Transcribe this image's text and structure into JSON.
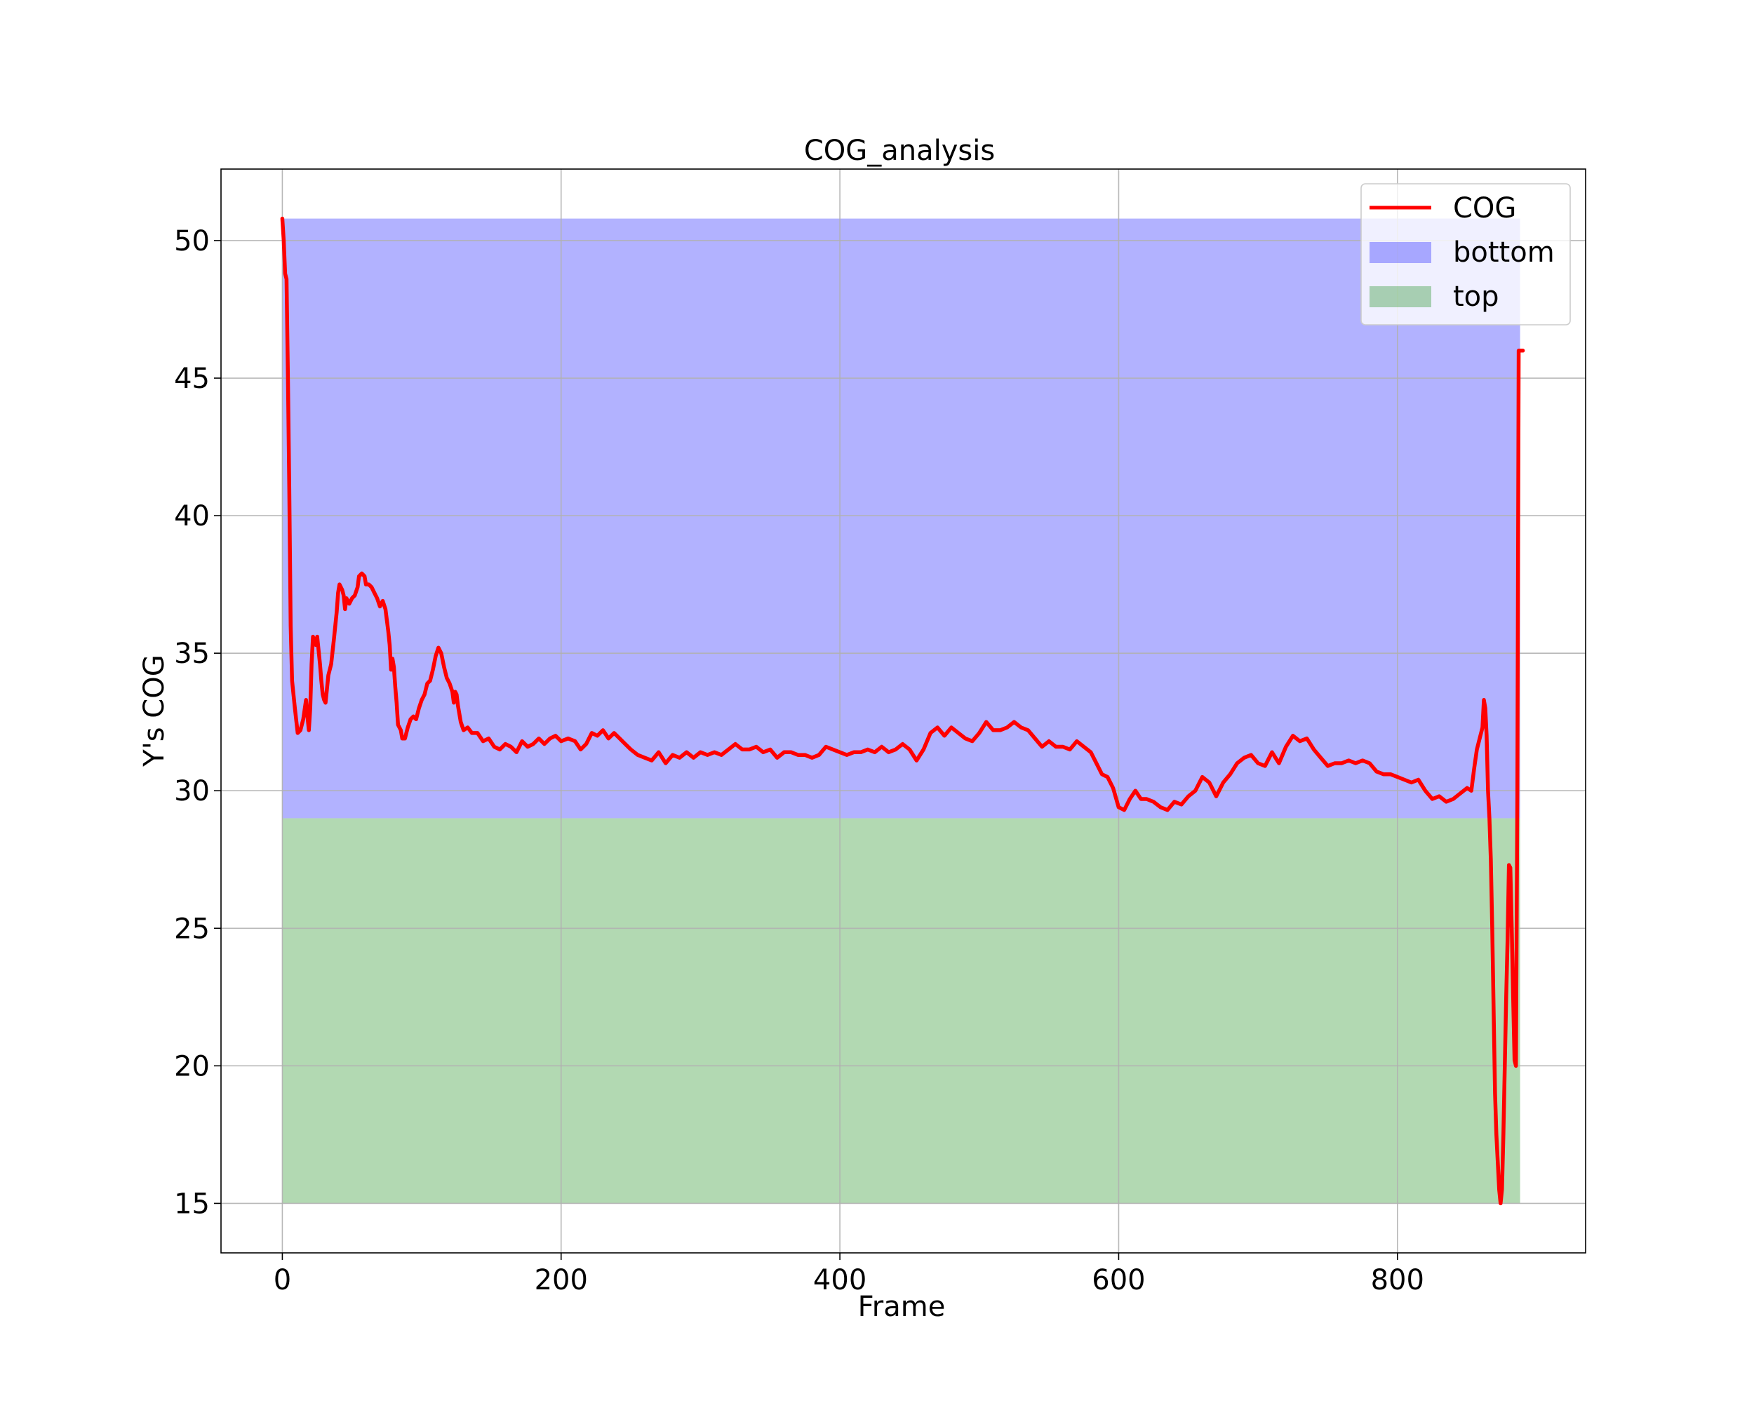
{
  "chart_data": {
    "type": "line",
    "title": "COG_analysis",
    "xlabel": "Frame",
    "ylabel": "Y's COG",
    "xlim": [
      -44,
      935
    ],
    "ylim": [
      13.2,
      52.6
    ],
    "xticks": [
      0,
      200,
      400,
      600,
      800
    ],
    "yticks": [
      15,
      20,
      25,
      30,
      35,
      40,
      45,
      50
    ],
    "grid": true,
    "legend_position": "upper right",
    "series": [
      {
        "name": "COG",
        "kind": "line",
        "color": "#ff0000",
        "points": [
          [
            0,
            50.8
          ],
          [
            1,
            50.0
          ],
          [
            2,
            48.8
          ],
          [
            3,
            48.6
          ],
          [
            4,
            45.0
          ],
          [
            5,
            41.0
          ],
          [
            6,
            36.0
          ],
          [
            7,
            34.0
          ],
          [
            9,
            33.0
          ],
          [
            11,
            32.1
          ],
          [
            13,
            32.2
          ],
          [
            15,
            32.6
          ],
          [
            17,
            33.3
          ],
          [
            18,
            32.7
          ],
          [
            19,
            32.2
          ],
          [
            20,
            33.0
          ],
          [
            21,
            34.6
          ],
          [
            22,
            35.6
          ],
          [
            24,
            35.3
          ],
          [
            25,
            35.6
          ],
          [
            27,
            34.6
          ],
          [
            28,
            34.0
          ],
          [
            29,
            33.5
          ],
          [
            30,
            33.3
          ],
          [
            31,
            33.2
          ],
          [
            33,
            34.2
          ],
          [
            35,
            34.6
          ],
          [
            37,
            35.5
          ],
          [
            39,
            36.5
          ],
          [
            40,
            37.2
          ],
          [
            41,
            37.5
          ],
          [
            43,
            37.3
          ],
          [
            44,
            37.1
          ],
          [
            45,
            36.6
          ],
          [
            46,
            37.0
          ],
          [
            48,
            36.8
          ],
          [
            50,
            37.0
          ],
          [
            52,
            37.1
          ],
          [
            54,
            37.4
          ],
          [
            55,
            37.8
          ],
          [
            57,
            37.9
          ],
          [
            59,
            37.8
          ],
          [
            60,
            37.5
          ],
          [
            62,
            37.5
          ],
          [
            64,
            37.4
          ],
          [
            66,
            37.2
          ],
          [
            68,
            37.0
          ],
          [
            70,
            36.7
          ],
          [
            72,
            36.9
          ],
          [
            74,
            36.6
          ],
          [
            76,
            35.8
          ],
          [
            77,
            35.3
          ],
          [
            78,
            34.4
          ],
          [
            79,
            34.8
          ],
          [
            80,
            34.5
          ],
          [
            81,
            33.8
          ],
          [
            82,
            33.2
          ],
          [
            83,
            32.4
          ],
          [
            85,
            32.2
          ],
          [
            86,
            31.9
          ],
          [
            88,
            31.9
          ],
          [
            90,
            32.3
          ],
          [
            92,
            32.6
          ],
          [
            94,
            32.7
          ],
          [
            96,
            32.6
          ],
          [
            98,
            33.0
          ],
          [
            100,
            33.3
          ],
          [
            102,
            33.5
          ],
          [
            104,
            33.9
          ],
          [
            106,
            34.0
          ],
          [
            108,
            34.4
          ],
          [
            110,
            34.9
          ],
          [
            112,
            35.2
          ],
          [
            114,
            35.0
          ],
          [
            116,
            34.5
          ],
          [
            118,
            34.1
          ],
          [
            120,
            33.9
          ],
          [
            122,
            33.6
          ],
          [
            123,
            33.2
          ],
          [
            124,
            33.6
          ],
          [
            125,
            33.5
          ],
          [
            126,
            33.1
          ],
          [
            127,
            32.8
          ],
          [
            128,
            32.5
          ],
          [
            130,
            32.2
          ],
          [
            133,
            32.3
          ],
          [
            136,
            32.1
          ],
          [
            140,
            32.1
          ],
          [
            144,
            31.8
          ],
          [
            148,
            31.9
          ],
          [
            152,
            31.6
          ],
          [
            156,
            31.5
          ],
          [
            160,
            31.7
          ],
          [
            164,
            31.6
          ],
          [
            168,
            31.4
          ],
          [
            172,
            31.8
          ],
          [
            176,
            31.6
          ],
          [
            180,
            31.7
          ],
          [
            184,
            31.9
          ],
          [
            188,
            31.7
          ],
          [
            192,
            31.9
          ],
          [
            196,
            32.0
          ],
          [
            200,
            31.8
          ],
          [
            205,
            31.9
          ],
          [
            210,
            31.8
          ],
          [
            214,
            31.5
          ],
          [
            218,
            31.7
          ],
          [
            222,
            32.1
          ],
          [
            226,
            32.0
          ],
          [
            230,
            32.2
          ],
          [
            234,
            31.9
          ],
          [
            238,
            32.1
          ],
          [
            242,
            31.9
          ],
          [
            246,
            31.7
          ],
          [
            250,
            31.5
          ],
          [
            255,
            31.3
          ],
          [
            260,
            31.2
          ],
          [
            265,
            31.1
          ],
          [
            270,
            31.4
          ],
          [
            275,
            31.0
          ],
          [
            280,
            31.3
          ],
          [
            285,
            31.2
          ],
          [
            290,
            31.4
          ],
          [
            295,
            31.2
          ],
          [
            300,
            31.4
          ],
          [
            305,
            31.3
          ],
          [
            310,
            31.4
          ],
          [
            315,
            31.3
          ],
          [
            320,
            31.5
          ],
          [
            325,
            31.7
          ],
          [
            330,
            31.5
          ],
          [
            335,
            31.5
          ],
          [
            340,
            31.6
          ],
          [
            345,
            31.4
          ],
          [
            350,
            31.5
          ],
          [
            355,
            31.2
          ],
          [
            360,
            31.4
          ],
          [
            365,
            31.4
          ],
          [
            370,
            31.3
          ],
          [
            375,
            31.3
          ],
          [
            380,
            31.2
          ],
          [
            385,
            31.3
          ],
          [
            390,
            31.6
          ],
          [
            395,
            31.5
          ],
          [
            400,
            31.4
          ],
          [
            405,
            31.3
          ],
          [
            410,
            31.4
          ],
          [
            415,
            31.4
          ],
          [
            420,
            31.5
          ],
          [
            425,
            31.4
          ],
          [
            430,
            31.6
          ],
          [
            435,
            31.4
          ],
          [
            440,
            31.5
          ],
          [
            445,
            31.7
          ],
          [
            450,
            31.5
          ],
          [
            455,
            31.1
          ],
          [
            460,
            31.5
          ],
          [
            465,
            32.1
          ],
          [
            470,
            32.3
          ],
          [
            475,
            32.0
          ],
          [
            480,
            32.3
          ],
          [
            485,
            32.1
          ],
          [
            490,
            31.9
          ],
          [
            495,
            31.8
          ],
          [
            500,
            32.1
          ],
          [
            505,
            32.5
          ],
          [
            510,
            32.2
          ],
          [
            515,
            32.2
          ],
          [
            520,
            32.3
          ],
          [
            525,
            32.5
          ],
          [
            530,
            32.3
          ],
          [
            535,
            32.2
          ],
          [
            540,
            31.9
          ],
          [
            545,
            31.6
          ],
          [
            550,
            31.8
          ],
          [
            555,
            31.6
          ],
          [
            560,
            31.6
          ],
          [
            565,
            31.5
          ],
          [
            570,
            31.8
          ],
          [
            575,
            31.6
          ],
          [
            580,
            31.4
          ],
          [
            584,
            31.0
          ],
          [
            588,
            30.6
          ],
          [
            592,
            30.5
          ],
          [
            596,
            30.1
          ],
          [
            600,
            29.4
          ],
          [
            604,
            29.3
          ],
          [
            608,
            29.7
          ],
          [
            612,
            30.0
          ],
          [
            616,
            29.7
          ],
          [
            620,
            29.7
          ],
          [
            625,
            29.6
          ],
          [
            630,
            29.4
          ],
          [
            635,
            29.3
          ],
          [
            640,
            29.6
          ],
          [
            645,
            29.5
          ],
          [
            650,
            29.8
          ],
          [
            655,
            30.0
          ],
          [
            660,
            30.5
          ],
          [
            665,
            30.3
          ],
          [
            670,
            29.8
          ],
          [
            675,
            30.3
          ],
          [
            680,
            30.6
          ],
          [
            685,
            31.0
          ],
          [
            690,
            31.2
          ],
          [
            695,
            31.3
          ],
          [
            700,
            31.0
          ],
          [
            705,
            30.9
          ],
          [
            710,
            31.4
          ],
          [
            715,
            31.0
          ],
          [
            720,
            31.6
          ],
          [
            725,
            32.0
          ],
          [
            730,
            31.8
          ],
          [
            735,
            31.9
          ],
          [
            740,
            31.5
          ],
          [
            745,
            31.2
          ],
          [
            750,
            30.9
          ],
          [
            755,
            31.0
          ],
          [
            760,
            31.0
          ],
          [
            765,
            31.1
          ],
          [
            770,
            31.0
          ],
          [
            775,
            31.1
          ],
          [
            780,
            31.0
          ],
          [
            785,
            30.7
          ],
          [
            790,
            30.6
          ],
          [
            795,
            30.6
          ],
          [
            800,
            30.5
          ],
          [
            805,
            30.4
          ],
          [
            810,
            30.3
          ],
          [
            815,
            30.4
          ],
          [
            820,
            30.0
          ],
          [
            825,
            29.7
          ],
          [
            830,
            29.8
          ],
          [
            835,
            29.6
          ],
          [
            840,
            29.7
          ],
          [
            845,
            29.9
          ],
          [
            850,
            30.1
          ],
          [
            853,
            30.0
          ],
          [
            855,
            30.8
          ],
          [
            857,
            31.5
          ],
          [
            859,
            31.9
          ],
          [
            861,
            32.3
          ],
          [
            862,
            33.3
          ],
          [
            863,
            33.0
          ],
          [
            864,
            32.0
          ],
          [
            865,
            30.0
          ],
          [
            866,
            29.0
          ],
          [
            867,
            27.5
          ],
          [
            868,
            25.0
          ],
          [
            869,
            22.0
          ],
          [
            870,
            19.0
          ],
          [
            871,
            17.5
          ],
          [
            872,
            16.5
          ],
          [
            873,
            15.5
          ],
          [
            874,
            15.0
          ],
          [
            875,
            15.5
          ],
          [
            876,
            17.5
          ],
          [
            877,
            20.0
          ],
          [
            878,
            22.5
          ],
          [
            879,
            24.5
          ],
          [
            880,
            27.3
          ],
          [
            881,
            27.2
          ],
          [
            882,
            25.0
          ],
          [
            883,
            22.5
          ],
          [
            884,
            20.2
          ],
          [
            885,
            20.0
          ],
          [
            886,
            30.0
          ],
          [
            887,
            46.0
          ],
          [
            888,
            46.0
          ],
          [
            890,
            46.0
          ]
        ]
      },
      {
        "name": "bottom",
        "kind": "band",
        "color": "#0000ff",
        "opacity": 0.3,
        "x_range": [
          0,
          888
        ],
        "y_range": [
          29.0,
          50.8
        ]
      },
      {
        "name": "top",
        "kind": "band",
        "color": "#008000",
        "opacity": 0.3,
        "x_range": [
          0,
          888
        ],
        "y_range": [
          15.0,
          29.0
        ]
      }
    ]
  }
}
